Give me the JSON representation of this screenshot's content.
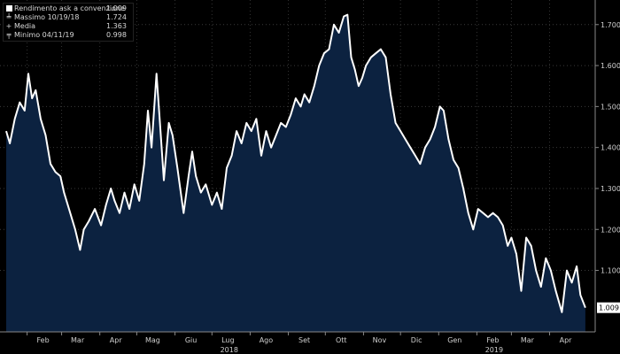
{
  "chart_data": {
    "type": "area",
    "series": [
      {
        "name": "Rendimento ask a convenzione",
        "color": "#ffffff",
        "fill": "#0c2240",
        "values": [
          [
            "2018-01-15",
            1.44
          ],
          [
            "2018-01-18",
            1.41
          ],
          [
            "2018-01-22",
            1.47
          ],
          [
            "2018-01-26",
            1.51
          ],
          [
            "2018-01-30",
            1.49
          ],
          [
            "2018-02-02",
            1.58
          ],
          [
            "2018-02-05",
            1.52
          ],
          [
            "2018-02-08",
            1.54
          ],
          [
            "2018-02-12",
            1.47
          ],
          [
            "2018-02-16",
            1.43
          ],
          [
            "2018-02-20",
            1.36
          ],
          [
            "2018-02-24",
            1.34
          ],
          [
            "2018-02-28",
            1.33
          ],
          [
            "2018-03-03",
            1.29
          ],
          [
            "2018-03-07",
            1.25
          ],
          [
            "2018-03-12",
            1.2
          ],
          [
            "2018-03-16",
            1.15
          ],
          [
            "2018-03-19",
            1.2
          ],
          [
            "2018-03-23",
            1.22
          ],
          [
            "2018-03-28",
            1.25
          ],
          [
            "2018-04-02",
            1.21
          ],
          [
            "2018-04-06",
            1.26
          ],
          [
            "2018-04-10",
            1.3
          ],
          [
            "2018-04-13",
            1.27
          ],
          [
            "2018-04-17",
            1.24
          ],
          [
            "2018-04-21",
            1.29
          ],
          [
            "2018-04-25",
            1.25
          ],
          [
            "2018-04-29",
            1.31
          ],
          [
            "2018-05-03",
            1.27
          ],
          [
            "2018-05-07",
            1.36
          ],
          [
            "2018-05-10",
            1.49
          ],
          [
            "2018-05-13",
            1.4
          ],
          [
            "2018-05-17",
            1.58
          ],
          [
            "2018-05-20",
            1.45
          ],
          [
            "2018-05-23",
            1.32
          ],
          [
            "2018-05-27",
            1.46
          ],
          [
            "2018-05-30",
            1.43
          ],
          [
            "2018-06-03",
            1.35
          ],
          [
            "2018-06-08",
            1.24
          ],
          [
            "2018-06-12",
            1.33
          ],
          [
            "2018-06-15",
            1.39
          ],
          [
            "2018-06-18",
            1.33
          ],
          [
            "2018-06-22",
            1.29
          ],
          [
            "2018-06-26",
            1.31
          ],
          [
            "2018-07-01",
            1.26
          ],
          [
            "2018-07-05",
            1.29
          ],
          [
            "2018-07-09",
            1.25
          ],
          [
            "2018-07-13",
            1.35
          ],
          [
            "2018-07-17",
            1.38
          ],
          [
            "2018-07-21",
            1.44
          ],
          [
            "2018-07-25",
            1.41
          ],
          [
            "2018-07-29",
            1.46
          ],
          [
            "2018-08-02",
            1.44
          ],
          [
            "2018-08-06",
            1.47
          ],
          [
            "2018-08-10",
            1.38
          ],
          [
            "2018-08-14",
            1.44
          ],
          [
            "2018-08-18",
            1.4
          ],
          [
            "2018-08-22",
            1.43
          ],
          [
            "2018-08-26",
            1.46
          ],
          [
            "2018-08-30",
            1.45
          ],
          [
            "2018-09-03",
            1.48
          ],
          [
            "2018-09-07",
            1.52
          ],
          [
            "2018-09-11",
            1.5
          ],
          [
            "2018-09-14",
            1.53
          ],
          [
            "2018-09-18",
            1.51
          ],
          [
            "2018-09-22",
            1.55
          ],
          [
            "2018-09-26",
            1.6
          ],
          [
            "2018-09-30",
            1.63
          ],
          [
            "2018-10-04",
            1.64
          ],
          [
            "2018-10-08",
            1.7
          ],
          [
            "2018-10-12",
            1.68
          ],
          [
            "2018-10-16",
            1.72
          ],
          [
            "2018-10-19",
            1.724
          ],
          [
            "2018-10-22",
            1.62
          ],
          [
            "2018-10-25",
            1.59
          ],
          [
            "2018-10-28",
            1.55
          ],
          [
            "2018-10-31",
            1.57
          ],
          [
            "2018-11-03",
            1.6
          ],
          [
            "2018-11-07",
            1.62
          ],
          [
            "2018-11-11",
            1.63
          ],
          [
            "2018-11-15",
            1.64
          ],
          [
            "2018-11-19",
            1.62
          ],
          [
            "2018-11-23",
            1.53
          ],
          [
            "2018-11-27",
            1.46
          ],
          [
            "2018-12-01",
            1.44
          ],
          [
            "2018-12-05",
            1.42
          ],
          [
            "2018-12-09",
            1.4
          ],
          [
            "2018-12-13",
            1.38
          ],
          [
            "2018-12-17",
            1.36
          ],
          [
            "2018-12-21",
            1.4
          ],
          [
            "2018-12-25",
            1.42
          ],
          [
            "2018-12-29",
            1.45
          ],
          [
            "2019-01-02",
            1.5
          ],
          [
            "2019-01-05",
            1.49
          ],
          [
            "2019-01-09",
            1.42
          ],
          [
            "2019-01-13",
            1.37
          ],
          [
            "2019-01-17",
            1.35
          ],
          [
            "2019-01-21",
            1.3
          ],
          [
            "2019-01-25",
            1.24
          ],
          [
            "2019-01-29",
            1.2
          ],
          [
            "2019-02-02",
            1.25
          ],
          [
            "2019-02-06",
            1.24
          ],
          [
            "2019-02-10",
            1.23
          ],
          [
            "2019-02-14",
            1.24
          ],
          [
            "2019-02-18",
            1.23
          ],
          [
            "2019-02-22",
            1.21
          ],
          [
            "2019-02-26",
            1.16
          ],
          [
            "2019-03-01",
            1.18
          ],
          [
            "2019-03-05",
            1.14
          ],
          [
            "2019-03-09",
            1.05
          ],
          [
            "2019-03-13",
            1.18
          ],
          [
            "2019-03-17",
            1.16
          ],
          [
            "2019-03-21",
            1.1
          ],
          [
            "2019-03-25",
            1.06
          ],
          [
            "2019-03-29",
            1.13
          ],
          [
            "2019-04-02",
            1.1
          ],
          [
            "2019-04-06",
            1.05
          ],
          [
            "2019-04-11",
            0.998
          ],
          [
            "2019-04-15",
            1.1
          ],
          [
            "2019-04-19",
            1.07
          ],
          [
            "2019-04-23",
            1.11
          ],
          [
            "2019-04-26",
            1.04
          ],
          [
            "2019-04-30",
            1.009
          ]
        ]
      }
    ],
    "x_range": [
      "2018-01-10",
      "2019-05-08"
    ],
    "ylim": [
      0.95,
      1.76
    ],
    "y_ticks": [
      1.1,
      1.2,
      1.3,
      1.4,
      1.5,
      1.6,
      1.7
    ],
    "y_tick_labels": [
      "1.100",
      "1.200",
      "1.300",
      "1.400",
      "1.500",
      "1.600",
      "1.700"
    ],
    "y_axis_side": "right",
    "last_value_label": "1.009",
    "last_value": 1.009,
    "grid": "dotted",
    "x_month_ticks": [
      {
        "date": "2018-02-01",
        "label": "Feb"
      },
      {
        "date": "2018-03-01",
        "label": "Mar"
      },
      {
        "date": "2018-04-01",
        "label": "Apr"
      },
      {
        "date": "2018-05-01",
        "label": "Mag"
      },
      {
        "date": "2018-06-01",
        "label": "Giu"
      },
      {
        "date": "2018-07-01",
        "label": "Lug"
      },
      {
        "date": "2018-08-01",
        "label": "Ago"
      },
      {
        "date": "2018-09-01",
        "label": "Set"
      },
      {
        "date": "2018-10-01",
        "label": "Ott"
      },
      {
        "date": "2018-11-01",
        "label": "Nov"
      },
      {
        "date": "2018-12-01",
        "label": "Dic"
      },
      {
        "date": "2019-01-01",
        "label": "Gen"
      },
      {
        "date": "2019-02-01",
        "label": "Feb"
      },
      {
        "date": "2019-03-01",
        "label": "Mar"
      },
      {
        "date": "2019-04-01",
        "label": "Apr"
      }
    ],
    "x_year_labels": [
      {
        "date": "2018-07-15",
        "label": "2018"
      },
      {
        "date": "2019-02-15",
        "label": "2019"
      }
    ],
    "legend_position": "top-left",
    "legend": [
      {
        "marker": "square",
        "label": "Rendimento ask a convenzione",
        "value": "1.009"
      },
      {
        "marker": "up-tick",
        "label": "Massimo 10/19/18",
        "value": "1.724"
      },
      {
        "marker": "plus",
        "label": "Media",
        "value": "1.363"
      },
      {
        "marker": "down-tick",
        "label": "Minimo 04/11/19",
        "value": "0.998"
      }
    ]
  }
}
